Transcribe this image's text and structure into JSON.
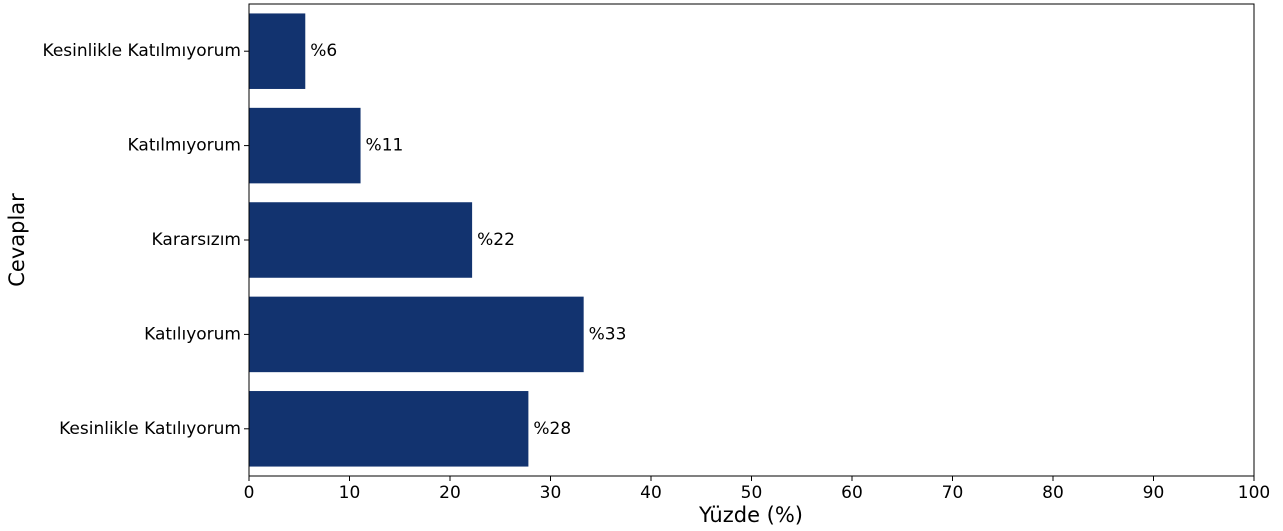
{
  "chart_data": {
    "type": "bar",
    "orientation": "horizontal",
    "categories": [
      "Kesinlikle Katılmıyorum",
      "Katılmıyorum",
      "Kararsızım",
      "Katılıyorum",
      "Kesinlikle Katılıyorum"
    ],
    "values": [
      5.6,
      11.1,
      22.2,
      33.3,
      27.8
    ],
    "data_labels": [
      "%6",
      "%11",
      "%22",
      "%33",
      "%28"
    ],
    "xlabel": "Yüzde (%)",
    "ylabel": "Cevaplar",
    "xlim": [
      0,
      100
    ],
    "xticks": [
      "0",
      "10",
      "20",
      "30",
      "40",
      "50",
      "60",
      "70",
      "80",
      "90",
      "100"
    ],
    "bar_color": "#12336f",
    "grid": false,
    "legend": "none"
  }
}
